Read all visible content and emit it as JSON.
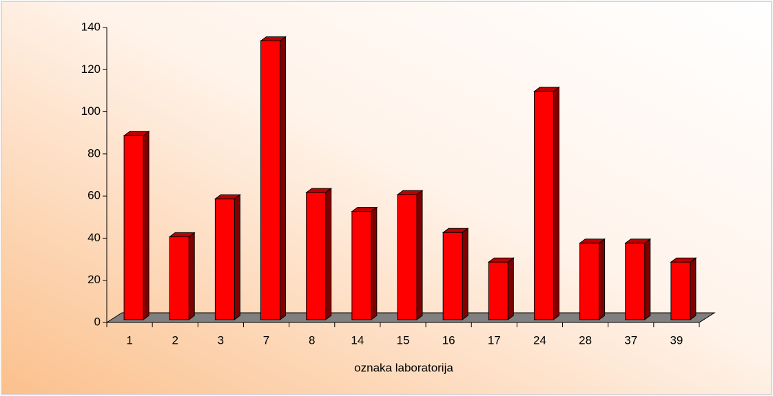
{
  "chart_data": {
    "type": "bar3d",
    "x_label": "oznaka laboratorija",
    "categories": [
      "1",
      "2",
      "3",
      "7",
      "8",
      "14",
      "15",
      "16",
      "17",
      "24",
      "28",
      "37",
      "39"
    ],
    "values": [
      88,
      40,
      58,
      133,
      61,
      52,
      60,
      42,
      28,
      109,
      37,
      37,
      28
    ],
    "color": "#ff0000",
    "ylim": [
      0,
      140
    ],
    "yticks": [
      0,
      20,
      40,
      60,
      80,
      100,
      120,
      140
    ]
  }
}
